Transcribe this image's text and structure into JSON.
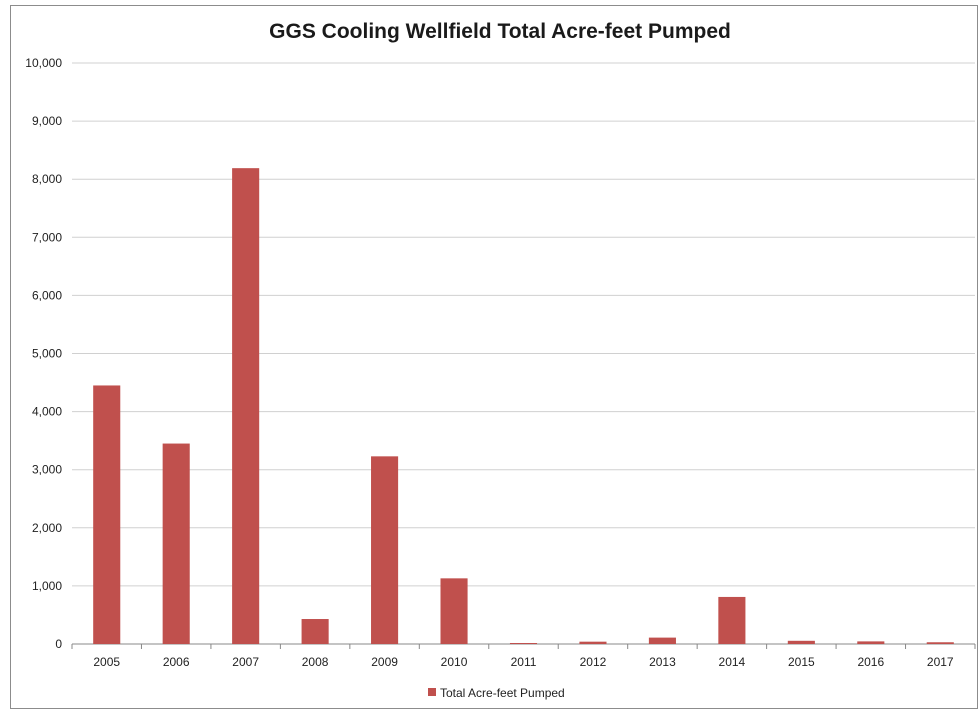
{
  "chart_data": {
    "type": "bar",
    "title": "GGS Cooling Wellfield Total Acre-feet Pumped",
    "categories": [
      "2005",
      "2006",
      "2007",
      "2008",
      "2009",
      "2010",
      "2011",
      "2012",
      "2013",
      "2014",
      "2015",
      "2016",
      "2017"
    ],
    "series": [
      {
        "name": "Total Acre-feet Pumped",
        "values": [
          4450,
          3450,
          8190,
          430,
          3230,
          1130,
          10,
          40,
          110,
          810,
          55,
          45,
          30
        ],
        "color": "#c0504d"
      }
    ],
    "ylim": [
      0,
      10000
    ],
    "yticks": [
      0,
      1000,
      2000,
      3000,
      4000,
      5000,
      6000,
      7000,
      8000,
      9000,
      10000
    ],
    "ytick_labels": [
      "0",
      "1,000",
      "2,000",
      "3,000",
      "4,000",
      "5,000",
      "6,000",
      "7,000",
      "8,000",
      "9,000",
      "10,000"
    ],
    "grid": true,
    "legend_position": "bottom"
  },
  "colors": {
    "bar": "#c0504d",
    "grid": "#d0d0d0",
    "axis": "#888888"
  }
}
